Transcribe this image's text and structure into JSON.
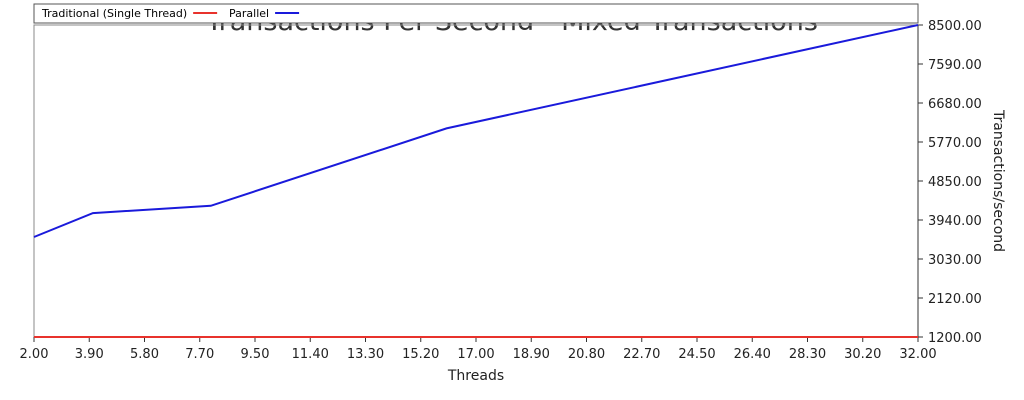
{
  "chart_data": {
    "type": "line",
    "title": "Transactions Per Second - Mixed Transactions",
    "xlabel": "Threads",
    "ylabel": "Transactions/second",
    "xlim": [
      2,
      32
    ],
    "ylim": [
      1200,
      8500
    ],
    "x_ticks": [
      "2.00",
      "3.90",
      "5.80",
      "7.70",
      "9.50",
      "11.40",
      "13.30",
      "15.20",
      "17.00",
      "18.90",
      "20.80",
      "22.70",
      "24.50",
      "26.40",
      "28.30",
      "30.20",
      "32.00"
    ],
    "y_ticks": [
      "1200.00",
      "2120.00",
      "3030.00",
      "3940.00",
      "4850.00",
      "5770.00",
      "6680.00",
      "7590.00",
      "8500.00"
    ],
    "grid": false,
    "legend": "top",
    "series": [
      {
        "name": "Traditional (Single Thread)",
        "color": "#e8322c",
        "points": [
          [
            2,
            1200
          ],
          [
            32,
            1200
          ]
        ]
      },
      {
        "name": "Parallel",
        "color": "#1a1adb",
        "points": [
          [
            2,
            3540
          ],
          [
            4,
            4100
          ],
          [
            8,
            4270
          ],
          [
            16,
            6080
          ],
          [
            32,
            8500
          ]
        ]
      }
    ]
  }
}
